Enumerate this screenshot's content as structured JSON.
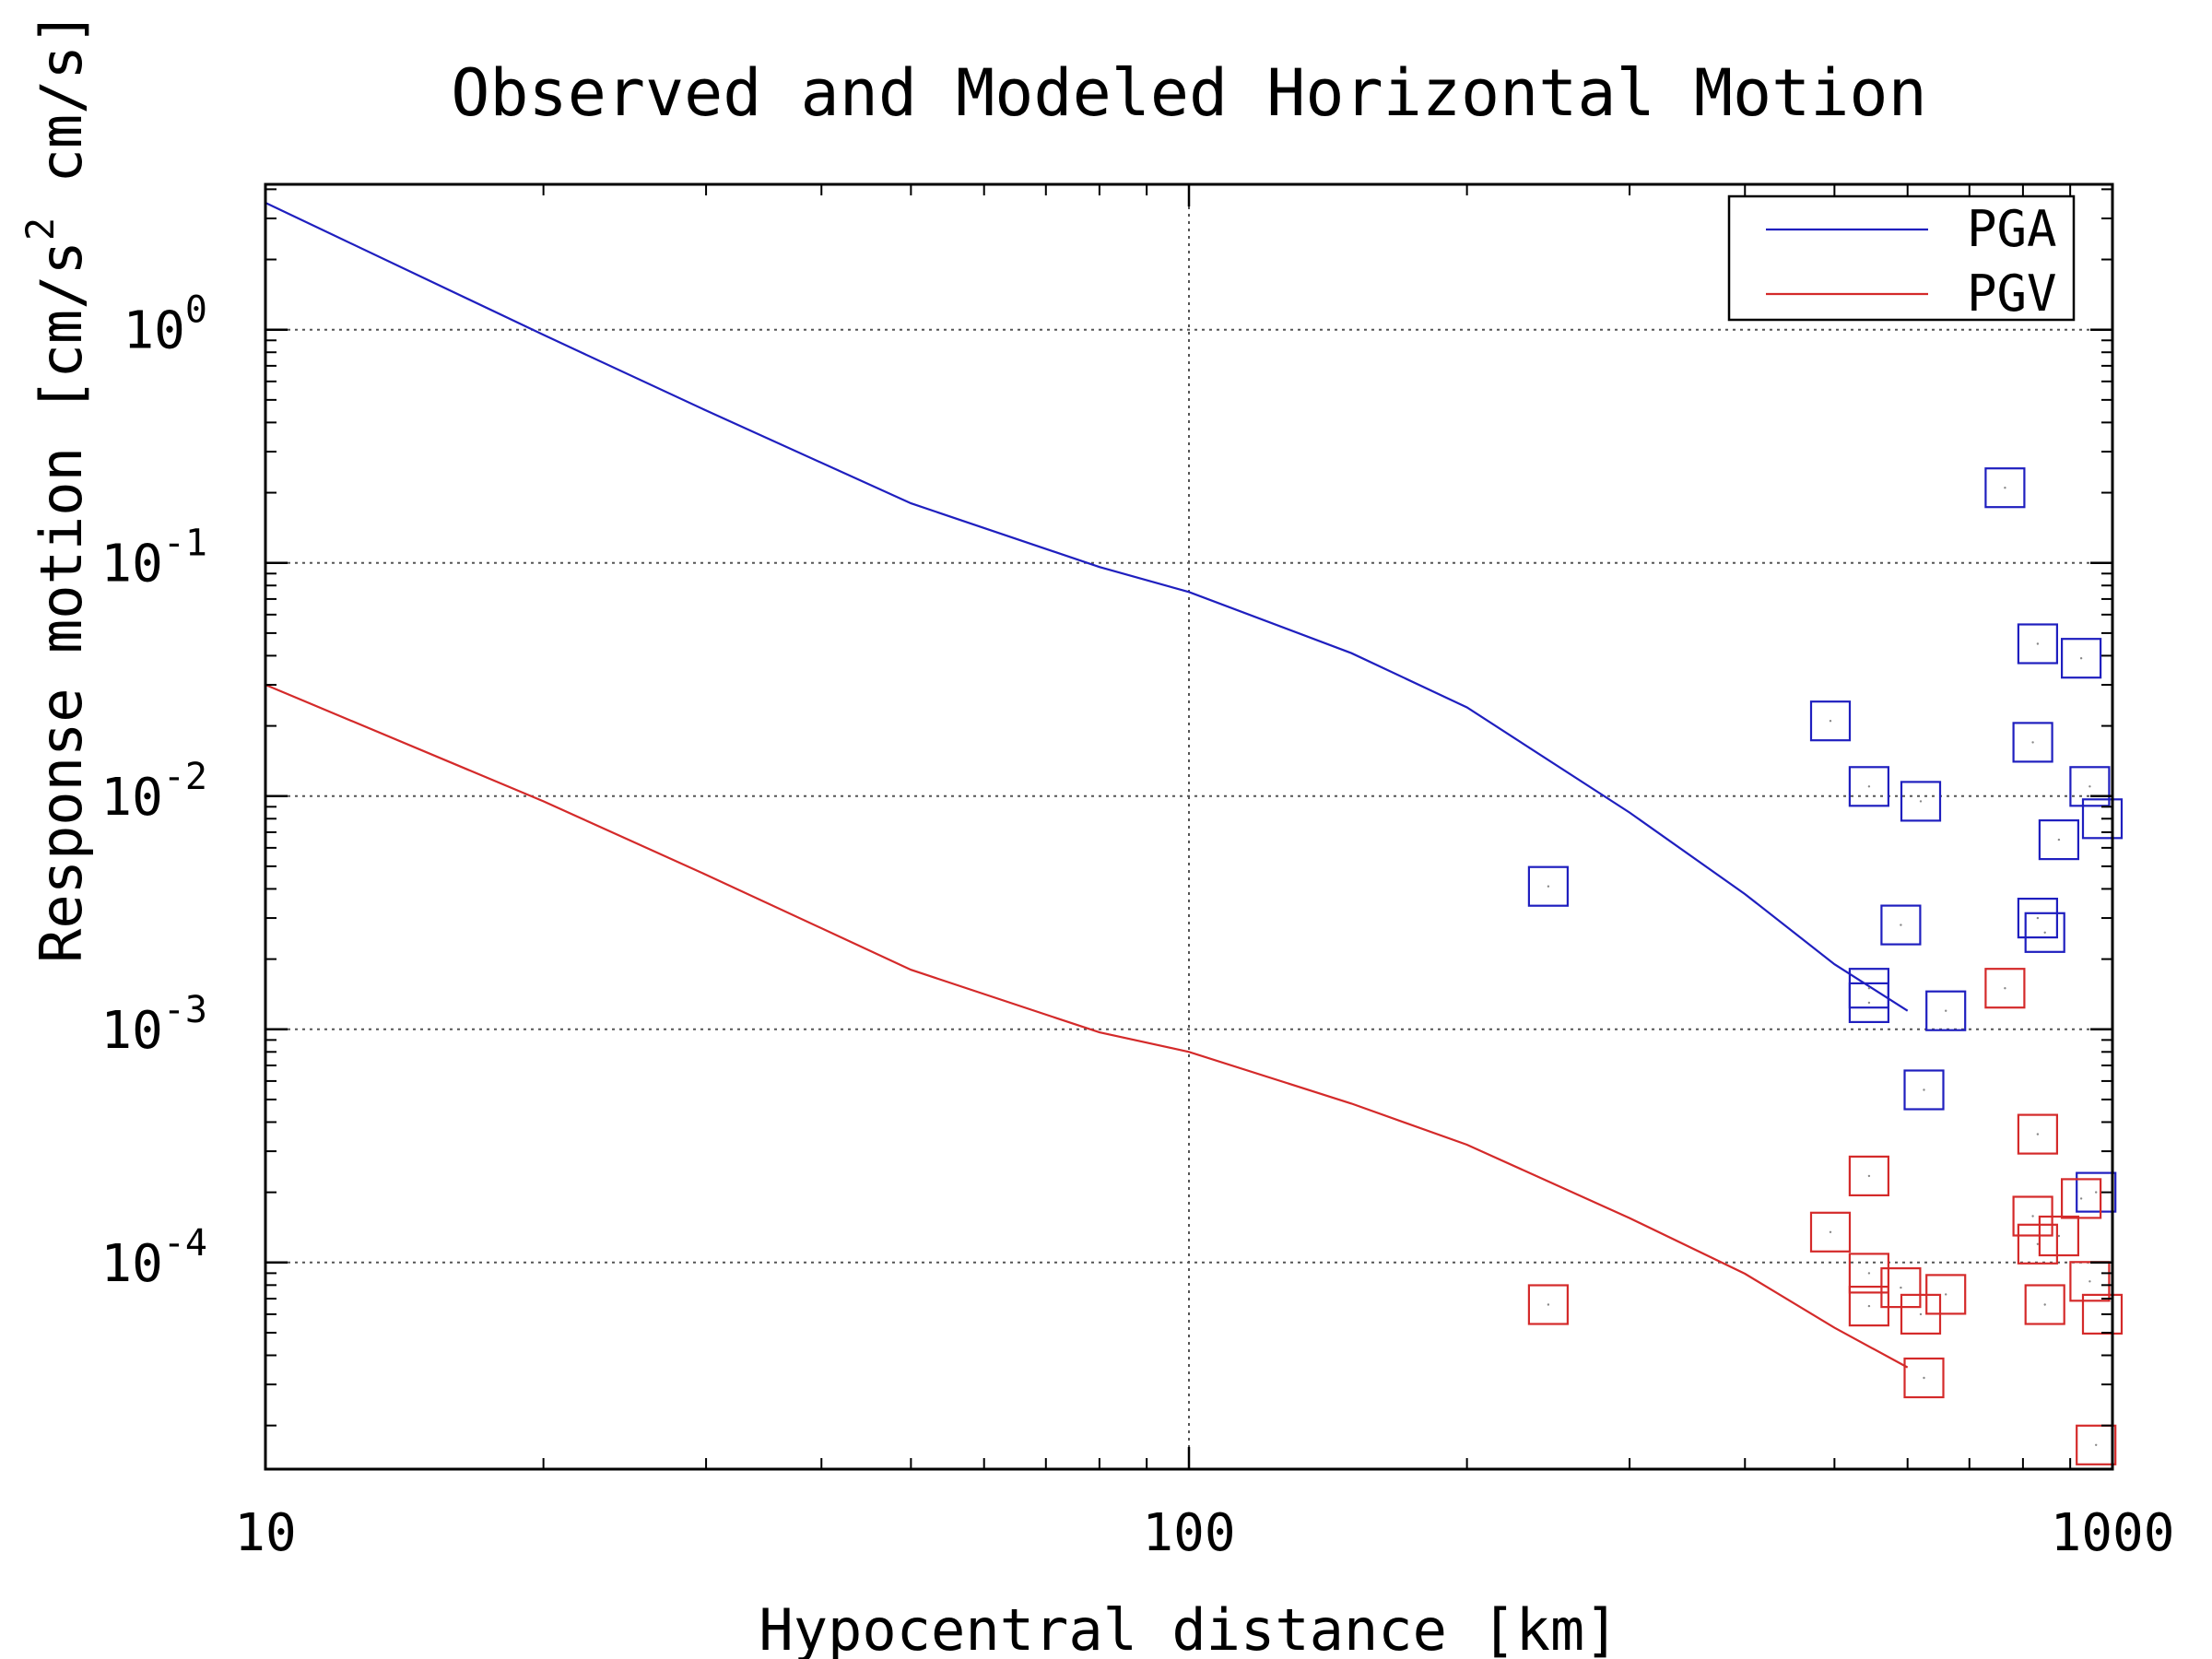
{
  "chart_data": {
    "type": "scatter",
    "title": "Observed and Modeled Horizontal Motion",
    "xlabel": "Hypocentral distance [km]",
    "ylabel_parts": {
      "main": "Response motion  [cm/s",
      "sup": "2",
      "tail": "  cm/s]"
    },
    "x_scale": "log",
    "y_scale": "log",
    "xlim": [
      10,
      1000
    ],
    "ylim": [
      1.3e-05,
      4.2
    ],
    "x_ticks": [
      {
        "value": 10,
        "label": "10"
      },
      {
        "value": 100,
        "label": "100"
      },
      {
        "value": 1000,
        "label": "1000"
      }
    ],
    "y_ticks": [
      {
        "value": 1,
        "base": "10",
        "exp": "0"
      },
      {
        "value": 0.1,
        "base": "10",
        "exp": "-1"
      },
      {
        "value": 0.01,
        "base": "10",
        "exp": "-2"
      },
      {
        "value": 0.001,
        "base": "10",
        "exp": "-3"
      },
      {
        "value": 0.0001,
        "base": "10",
        "exp": "-4"
      }
    ],
    "grid": true,
    "legend_position": "top-right",
    "colors": {
      "PGA": "#1f1fbf",
      "PGV": "#d42a2a",
      "axis": "#000000"
    },
    "series": [
      {
        "name": "PGA",
        "kind": "line",
        "color": "#1f1fbf",
        "x": [
          10,
          20,
          30,
          50,
          80,
          100,
          150,
          200,
          300,
          400,
          500,
          600
        ],
        "y": [
          3.5,
          0.95,
          0.45,
          0.18,
          0.096,
          0.075,
          0.041,
          0.024,
          0.0085,
          0.0038,
          0.0019,
          0.0012
        ]
      },
      {
        "name": "PGV",
        "kind": "line",
        "color": "#d42a2a",
        "x": [
          10,
          20,
          30,
          50,
          80,
          100,
          150,
          200,
          300,
          400,
          500,
          600
        ],
        "y": [
          0.03,
          0.0095,
          0.0046,
          0.0018,
          0.00097,
          0.0008,
          0.00048,
          0.00032,
          0.000155,
          8.95e-05,
          5.25e-05,
          3.55e-05
        ]
      }
    ],
    "observations": [
      {
        "name": "PGA observed",
        "color": "#1f1fbf",
        "x": [
          245,
          495,
          545,
          545,
          545,
          590,
          620,
          625,
          660,
          765,
          820,
          830,
          830,
          845,
          875,
          925,
          945,
          960,
          975
        ],
        "y": [
          0.0041,
          0.021,
          0.011,
          0.0015,
          0.0013,
          0.0028,
          0.0095,
          0.00055,
          0.0012,
          0.21,
          0.017,
          0.045,
          0.003,
          0.0026,
          0.0065,
          0.039,
          0.011,
          0.0002,
          0.008
        ]
      },
      {
        "name": "PGV observed",
        "color": "#d42a2a",
        "x": [
          245,
          495,
          545,
          545,
          545,
          590,
          620,
          625,
          660,
          765,
          820,
          830,
          830,
          845,
          875,
          925,
          945,
          960,
          975
        ],
        "y": [
          6.6e-05,
          0.000135,
          0.000235,
          9e-05,
          6.5e-05,
          7.8e-05,
          6e-05,
          3.2e-05,
          7.3e-05,
          0.0015,
          0.000158,
          0.000355,
          0.00012,
          6.6e-05,
          0.00013,
          0.000188,
          8.3e-05,
          1.65e-05,
          6e-05
        ]
      }
    ]
  }
}
